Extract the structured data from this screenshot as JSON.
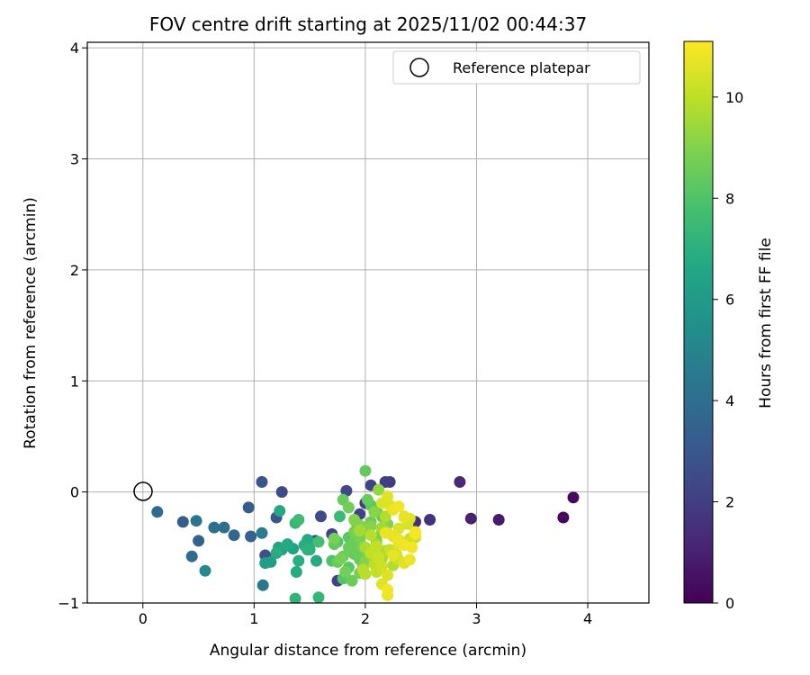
{
  "chart_data": {
    "type": "scatter",
    "title": "FOV centre drift starting at 2025/11/02 00:44:37",
    "xlabel": "Angular distance from reference (arcmin)",
    "ylabel": "Rotation from reference (arcmin)",
    "xlim": [
      -0.5,
      4.55
    ],
    "ylim": [
      -1.0,
      4.05
    ],
    "xticks": [
      0,
      1,
      2,
      3,
      4
    ],
    "yticks": [
      -1,
      0,
      1,
      2,
      3,
      4
    ],
    "grid": true,
    "legend": {
      "placement": "top-right",
      "entries": [
        "Reference platepar"
      ]
    },
    "reference_point": {
      "x": 0,
      "y": 0,
      "label": "Reference platepar"
    },
    "colorbar": {
      "label": "Hours from first FF file",
      "colormap": "viridis",
      "range": [
        0,
        11.1
      ],
      "ticks": [
        0,
        2,
        4,
        6,
        8,
        10
      ]
    },
    "series": [
      {
        "name": "FOV centre drift",
        "x": [
          3.78,
          3.87,
          3.2,
          2.95,
          2.85,
          2.58,
          2.45,
          2.22,
          2.18,
          2.05,
          2.0,
          1.95,
          1.83,
          1.75,
          1.6,
          1.55,
          1.7,
          1.25,
          1.07,
          1.1,
          1.2,
          0.95,
          0.97,
          0.82,
          0.73,
          0.64,
          0.48,
          0.5,
          0.44,
          0.36,
          0.13,
          1.07,
          1.23,
          1.22,
          1.4,
          1.37,
          1.45,
          1.48,
          1.35,
          1.3,
          1.25,
          1.2,
          1.15,
          1.1,
          1.08,
          1.38,
          1.4,
          1.48,
          1.5,
          1.5,
          1.58,
          1.56,
          0.56,
          1.37,
          1.58,
          1.77,
          1.72,
          1.8,
          1.85,
          1.9,
          1.95,
          1.9,
          1.75,
          1.72,
          1.78,
          1.82,
          1.88,
          1.92,
          1.95,
          1.98,
          2.02,
          2.05,
          2.08,
          1.8,
          1.85,
          1.9,
          1.95,
          2.0,
          2.05,
          2.1,
          2.15,
          1.7,
          1.75,
          1.85,
          1.9,
          1.95,
          2.0,
          2.1,
          2.15,
          2.2,
          1.8,
          1.85,
          1.95,
          2.0,
          2.05,
          2.1,
          2.15,
          2.18,
          2.0,
          2.02,
          2.05,
          1.92,
          1.98,
          2.12,
          2.2,
          2.25,
          2.3,
          2.35,
          2.4,
          2.45,
          2.0,
          2.05,
          1.95,
          2.3,
          2.2,
          2.15,
          2.25,
          2.3,
          2.4,
          2.45,
          2.2,
          2.1,
          2.15,
          2.22,
          2.28,
          2.35,
          2.4,
          2.42,
          2.45,
          2.38,
          2.3,
          2.25,
          2.2,
          2.1,
          2.05,
          2.22,
          2.18,
          2.15,
          2.25,
          2.3,
          2.35,
          2.12,
          2.08,
          2.0,
          1.98,
          2.15,
          2.18,
          2.2,
          2.3,
          2.35
        ],
        "y": [
          -0.23,
          -0.05,
          -0.25,
          -0.24,
          0.09,
          -0.25,
          -0.27,
          0.09,
          0.09,
          0.06,
          -0.1,
          -0.2,
          0.01,
          -0.8,
          -0.22,
          -0.44,
          -0.38,
          0.0,
          0.09,
          -0.57,
          -0.23,
          -0.14,
          -0.4,
          -0.39,
          -0.32,
          -0.32,
          -0.26,
          -0.44,
          -0.58,
          -0.27,
          -0.18,
          -0.37,
          -0.17,
          -0.5,
          -0.25,
          -0.28,
          -0.48,
          -0.52,
          -0.51,
          -0.47,
          -0.52,
          -0.55,
          -0.63,
          -0.64,
          -0.84,
          -0.72,
          -0.62,
          -0.43,
          -0.45,
          -0.52,
          -0.45,
          -0.62,
          -0.71,
          -0.96,
          -0.95,
          -0.22,
          -0.47,
          -0.07,
          -0.14,
          -0.25,
          -0.3,
          -0.45,
          -0.63,
          -0.42,
          -0.6,
          -0.72,
          -0.8,
          -0.55,
          -0.38,
          -0.49,
          -0.52,
          -0.31,
          -0.18,
          -0.58,
          -0.5,
          -0.36,
          -0.41,
          -0.33,
          -0.27,
          -0.17,
          -0.22,
          -0.62,
          -0.45,
          -0.68,
          -0.56,
          -0.61,
          -0.52,
          -0.44,
          -0.36,
          -0.29,
          -0.78,
          -0.41,
          -0.73,
          -0.62,
          -0.58,
          -0.47,
          -0.32,
          -0.22,
          0.19,
          -0.07,
          -0.12,
          -0.28,
          -0.68,
          0.02,
          -0.04,
          -0.16,
          -0.13,
          -0.22,
          -0.24,
          -0.36,
          -0.5,
          -0.39,
          -0.35,
          -0.61,
          -0.75,
          -0.83,
          -0.57,
          -0.46,
          -0.42,
          -0.41,
          -0.93,
          -0.72,
          -0.67,
          -0.52,
          -0.56,
          -0.64,
          -0.61,
          -0.5,
          -0.38,
          -0.29,
          -0.33,
          -0.4,
          -0.37,
          -0.49,
          -0.55,
          -0.12,
          -0.53,
          -0.6,
          -0.66,
          -0.43,
          -0.48,
          -0.59,
          -0.65,
          -0.74,
          -0.7,
          -0.1,
          -0.37,
          -0.88,
          -0.45,
          -0.23
        ],
        "c": [
          0.3,
          0.3,
          0.8,
          1.0,
          1.3,
          1.6,
          1.5,
          1.9,
          2.0,
          2.2,
          2.0,
          2.2,
          2.4,
          2.1,
          2.4,
          2.6,
          2.2,
          2.5,
          2.9,
          2.7,
          3.0,
          3.3,
          3.4,
          3.7,
          4.0,
          4.1,
          4.3,
          3.5,
          3.9,
          3.2,
          3.8,
          4.6,
          6.7,
          6.5,
          7.6,
          7.3,
          6.9,
          7.1,
          6.4,
          6.7,
          6.4,
          6.9,
          6.2,
          6.2,
          4.4,
          6.8,
          6.9,
          6.7,
          6.7,
          7.0,
          7.8,
          6.8,
          5.2,
          7.2,
          7.3,
          7.5,
          8.4,
          8.5,
          8.7,
          9.0,
          9.0,
          8.6,
          8.5,
          8.8,
          8.8,
          8.7,
          8.6,
          8.5,
          8.8,
          8.9,
          8.9,
          9.1,
          9.1,
          8.6,
          8.6,
          8.8,
          8.8,
          8.8,
          8.6,
          8.5,
          8.4,
          8.0,
          8.0,
          8.2,
          8.4,
          8.5,
          8.6,
          8.8,
          8.9,
          9.0,
          8.1,
          8.2,
          8.7,
          9.0,
          9.2,
          9.4,
          9.6,
          9.8,
          8.4,
          8.5,
          8.2,
          8.7,
          8.6,
          9.3,
          10.6,
          10.8,
          10.9,
          10.7,
          10.5,
          11.0,
          9.7,
          9.9,
          9.6,
          10.2,
          10.5,
          10.6,
          10.7,
          10.6,
          10.3,
          10.1,
          10.8,
          10.1,
          10.3,
          10.2,
          10.4,
          10.6,
          10.8,
          10.9,
          11.0,
          10.4,
          10.5,
          10.7,
          10.6,
          10.1,
          10.1,
          10.5,
          9.7,
          9.6,
          9.8,
          10.7,
          10.9,
          10.2,
          10.0,
          9.9,
          9.9,
          10.5,
          10.8,
          10.9,
          10.8,
          10.7
        ]
      }
    ]
  }
}
